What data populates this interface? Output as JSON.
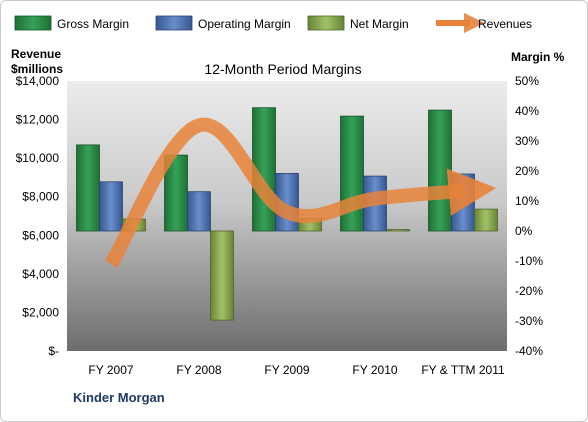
{
  "chart_data": {
    "type": "bar",
    "title": "12-Month Period Margins",
    "categories": [
      "FY 2007",
      "FY 2008",
      "FY 2009",
      "FY 2010",
      "FY & TTM 2011"
    ],
    "series": [
      {
        "name": "Gross Margin",
        "kind": "bar",
        "axis": "right",
        "color": "#2e8b4a",
        "values": [
          28.7,
          25.3,
          41.1,
          38.3,
          40.3
        ]
      },
      {
        "name": "Operating Margin",
        "kind": "bar",
        "axis": "right",
        "color": "#4f72b8",
        "values": [
          16.4,
          13.1,
          19.2,
          18.3,
          19.0
        ]
      },
      {
        "name": "Net Margin",
        "kind": "bar",
        "axis": "right",
        "color": "#8bab55",
        "values": [
          4.0,
          -29.7,
          4.2,
          0.5,
          7.3
        ]
      },
      {
        "name": "Revenues",
        "kind": "line",
        "axis": "left",
        "color": "#e8823a",
        "values": [
          4500,
          11700,
          7200,
          7900,
          8300
        ]
      }
    ],
    "left_axis": {
      "label_line1": "Revenue",
      "label_line2": "$millions",
      "min": 0,
      "max": 14000,
      "step": 2000,
      "ticks": [
        "$-",
        "$2,000",
        "$4,000",
        "$6,000",
        "$8,000",
        "$10,000",
        "$12,000",
        "$14,000"
      ]
    },
    "right_axis": {
      "label": "Margin %",
      "min": -40,
      "max": 50,
      "step": 10,
      "ticks": [
        "-40%",
        "-30%",
        "-20%",
        "-10%",
        "0%",
        "10%",
        "20%",
        "30%",
        "40%",
        "50%"
      ]
    },
    "legend_position": "top",
    "grid": false,
    "source_label": "Kinder Morgan"
  }
}
